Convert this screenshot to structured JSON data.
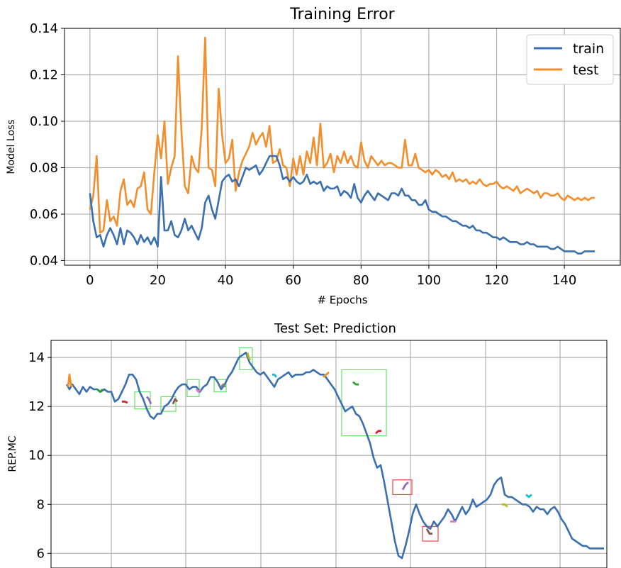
{
  "chart_data": [
    {
      "type": "line",
      "title": "Training Error",
      "xlabel": "# Epochs",
      "ylabel": "Model Loss",
      "xlim": [
        -7.5,
        156.5
      ],
      "ylim": [
        0.038,
        0.14
      ],
      "xticks": [
        0,
        20,
        40,
        60,
        80,
        100,
        120,
        140
      ],
      "yticks": [
        0.04,
        0.06,
        0.08,
        0.1,
        0.12,
        0.14
      ],
      "xtick_labels": [
        "0",
        "20",
        "40",
        "60",
        "80",
        "100",
        "120",
        "140"
      ],
      "ytick_labels": [
        "0.04",
        "0.06",
        "0.08",
        "0.10",
        "0.12",
        "0.14"
      ],
      "grid": true,
      "legend_position": "top-right",
      "x": [
        0,
        1,
        2,
        3,
        4,
        5,
        6,
        7,
        8,
        9,
        10,
        11,
        12,
        13,
        14,
        15,
        16,
        17,
        18,
        19,
        20,
        21,
        22,
        23,
        24,
        25,
        26,
        27,
        28,
        29,
        30,
        31,
        32,
        33,
        34,
        35,
        36,
        37,
        38,
        39,
        40,
        41,
        42,
        43,
        44,
        45,
        46,
        47,
        48,
        49,
        50,
        51,
        52,
        53,
        54,
        55,
        56,
        57,
        58,
        59,
        60,
        61,
        62,
        63,
        64,
        65,
        66,
        67,
        68,
        69,
        70,
        71,
        72,
        73,
        74,
        75,
        76,
        77,
        78,
        79,
        80,
        81,
        82,
        83,
        84,
        85,
        86,
        87,
        88,
        89,
        90,
        91,
        92,
        93,
        94,
        95,
        96,
        97,
        98,
        99,
        100,
        101,
        102,
        103,
        104,
        105,
        106,
        107,
        108,
        109,
        110,
        111,
        112,
        113,
        114,
        115,
        116,
        117,
        118,
        119,
        120,
        121,
        122,
        123,
        124,
        125,
        126,
        127,
        128,
        129,
        130,
        131,
        132,
        133,
        134,
        135,
        136,
        137,
        138,
        139,
        140,
        141,
        142,
        143,
        144,
        145,
        146,
        147,
        148,
        149
      ],
      "series": [
        {
          "name": "train",
          "color": "#3a6fb0",
          "values": [
            0.069,
            0.057,
            0.05,
            0.051,
            0.046,
            0.051,
            0.054,
            0.051,
            0.047,
            0.054,
            0.047,
            0.053,
            0.052,
            0.05,
            0.047,
            0.051,
            0.048,
            0.05,
            0.047,
            0.05,
            0.046,
            0.076,
            0.053,
            0.053,
            0.057,
            0.051,
            0.05,
            0.053,
            0.058,
            0.053,
            0.055,
            0.052,
            0.049,
            0.054,
            0.065,
            0.068,
            0.062,
            0.058,
            0.066,
            0.074,
            0.076,
            0.077,
            0.074,
            0.075,
            0.072,
            0.076,
            0.08,
            0.079,
            0.08,
            0.081,
            0.077,
            0.079,
            0.082,
            0.085,
            0.085,
            0.085,
            0.081,
            0.075,
            0.076,
            0.074,
            0.076,
            0.074,
            0.073,
            0.074,
            0.077,
            0.073,
            0.074,
            0.073,
            0.074,
            0.07,
            0.072,
            0.071,
            0.071,
            0.072,
            0.068,
            0.07,
            0.069,
            0.067,
            0.073,
            0.067,
            0.065,
            0.068,
            0.07,
            0.068,
            0.066,
            0.069,
            0.068,
            0.067,
            0.066,
            0.069,
            0.069,
            0.068,
            0.071,
            0.068,
            0.068,
            0.066,
            0.066,
            0.064,
            0.064,
            0.066,
            0.062,
            0.061,
            0.061,
            0.06,
            0.059,
            0.059,
            0.058,
            0.057,
            0.057,
            0.056,
            0.055,
            0.055,
            0.054,
            0.055,
            0.053,
            0.053,
            0.052,
            0.052,
            0.051,
            0.05,
            0.05,
            0.049,
            0.05,
            0.049,
            0.048,
            0.048,
            0.048,
            0.047,
            0.047,
            0.048,
            0.047,
            0.047,
            0.046,
            0.046,
            0.046,
            0.046,
            0.045,
            0.045,
            0.046,
            0.045,
            0.044,
            0.044,
            0.044,
            0.044,
            0.043,
            0.043,
            0.044,
            0.044,
            0.044,
            0.044
          ]
        },
        {
          "name": "test",
          "color": "#f28e2b",
          "values": [
            0.062,
            0.068,
            0.085,
            0.052,
            0.053,
            0.066,
            0.057,
            0.059,
            0.055,
            0.07,
            0.075,
            0.064,
            0.066,
            0.063,
            0.071,
            0.072,
            0.078,
            0.062,
            0.06,
            0.078,
            0.094,
            0.084,
            0.1,
            0.073,
            0.08,
            0.085,
            0.128,
            0.096,
            0.072,
            0.069,
            0.085,
            0.08,
            0.078,
            0.097,
            0.136,
            0.08,
            0.079,
            0.072,
            0.114,
            0.094,
            0.082,
            0.084,
            0.092,
            0.07,
            0.078,
            0.083,
            0.086,
            0.089,
            0.095,
            0.09,
            0.093,
            0.095,
            0.089,
            0.098,
            0.082,
            0.083,
            0.088,
            0.081,
            0.08,
            0.072,
            0.084,
            0.077,
            0.085,
            0.077,
            0.087,
            0.082,
            0.093,
            0.081,
            0.099,
            0.08,
            0.082,
            0.086,
            0.078,
            0.085,
            0.082,
            0.087,
            0.082,
            0.085,
            0.081,
            0.08,
            0.091,
            0.083,
            0.08,
            0.085,
            0.083,
            0.081,
            0.083,
            0.081,
            0.082,
            0.082,
            0.081,
            0.08,
            0.08,
            0.092,
            0.081,
            0.081,
            0.086,
            0.08,
            0.079,
            0.078,
            0.079,
            0.077,
            0.079,
            0.078,
            0.076,
            0.077,
            0.075,
            0.078,
            0.074,
            0.075,
            0.074,
            0.075,
            0.073,
            0.074,
            0.073,
            0.075,
            0.073,
            0.072,
            0.073,
            0.073,
            0.074,
            0.072,
            0.071,
            0.072,
            0.071,
            0.07,
            0.072,
            0.069,
            0.07,
            0.071,
            0.07,
            0.069,
            0.07,
            0.067,
            0.069,
            0.069,
            0.068,
            0.068,
            0.069,
            0.067,
            0.066,
            0.068,
            0.067,
            0.066,
            0.067,
            0.066,
            0.067,
            0.066,
            0.067,
            0.067
          ]
        }
      ]
    },
    {
      "type": "line",
      "title": "Test Set: Prediction",
      "xlabel": "",
      "ylabel": "REP.MC",
      "xlim": [
        0,
        784
      ],
      "ylim": [
        5.4,
        14.7
      ],
      "yticks": [
        6,
        8,
        10,
        12,
        14
      ],
      "ytick_labels": [
        "6",
        "8",
        "10",
        "12",
        "14"
      ],
      "grid": true,
      "actual": {
        "color": "#3a6fb0",
        "x": [
          22,
          26,
          30,
          35,
          40,
          45,
          50,
          55,
          60,
          65,
          70,
          75,
          80,
          85,
          90,
          95,
          100,
          105,
          110,
          115,
          120,
          125,
          130,
          135,
          140,
          145,
          150,
          155,
          160,
          165,
          170,
          175,
          180,
          185,
          190,
          195,
          200,
          205,
          210,
          215,
          220,
          225,
          230,
          235,
          240,
          245,
          250,
          255,
          260,
          265,
          270,
          275,
          280,
          285,
          290,
          295,
          300,
          305,
          310,
          315,
          320,
          325,
          330,
          335,
          340,
          345,
          350,
          355,
          360,
          365,
          370,
          375,
          380,
          385,
          390,
          395,
          400,
          405,
          410,
          415,
          420,
          425,
          430,
          435,
          440,
          445,
          450,
          455,
          460,
          465,
          470,
          475,
          480,
          485,
          490,
          495,
          500,
          505,
          510,
          515,
          520,
          525,
          530,
          535,
          540,
          545,
          550,
          555,
          560,
          565,
          570,
          575,
          580,
          585,
          590,
          595,
          600,
          605,
          610,
          615,
          620,
          625,
          630,
          635,
          640,
          645,
          650,
          655,
          660,
          665,
          670,
          675,
          680,
          685,
          690,
          695,
          700,
          705,
          710,
          715,
          720,
          725,
          730,
          735,
          740,
          745,
          750,
          755,
          760,
          765,
          770,
          775,
          780
        ],
        "y": [
          12.9,
          12.7,
          12.9,
          12.7,
          12.5,
          12.8,
          12.6,
          12.8,
          12.7,
          12.7,
          12.6,
          12.7,
          12.6,
          12.6,
          12.2,
          12.3,
          12.6,
          12.9,
          13.3,
          13.3,
          13.1,
          12.6,
          12.3,
          11.9,
          11.6,
          11.5,
          11.7,
          11.7,
          12.0,
          12.1,
          12.3,
          12.6,
          12.8,
          12.9,
          12.9,
          12.7,
          12.8,
          12.8,
          12.6,
          12.8,
          12.9,
          13.2,
          13.2,
          13.0,
          12.7,
          12.9,
          13.2,
          13.4,
          13.7,
          14.0,
          14.1,
          14.2,
          13.8,
          13.6,
          13.4,
          13.3,
          13.4,
          13.2,
          13.0,
          12.8,
          13.1,
          13.2,
          13.3,
          13.4,
          13.2,
          13.3,
          13.3,
          13.3,
          13.4,
          13.4,
          13.5,
          13.4,
          13.3,
          13.3,
          13.1,
          12.9,
          12.7,
          12.4,
          12.1,
          11.8,
          11.9,
          12.0,
          11.7,
          11.6,
          11.3,
          10.9,
          10.5,
          9.9,
          9.5,
          9.6,
          8.9,
          8.1,
          7.3,
          6.5,
          5.9,
          5.8,
          6.3,
          6.9,
          7.6,
          8.0,
          7.6,
          7.3,
          7.1,
          7.0,
          7.3,
          7.1,
          7.3,
          7.5,
          7.8,
          7.6,
          7.3,
          7.6,
          7.9,
          7.6,
          7.8,
          8.2,
          7.9,
          8.0,
          8.1,
          8.2,
          8.4,
          8.8,
          9.0,
          9.1,
          8.4,
          8.3,
          8.3,
          8.2,
          8.1,
          8.0,
          8.0,
          7.9,
          7.7,
          7.9,
          7.8,
          7.8,
          7.6,
          7.8,
          7.9,
          7.7,
          7.4,
          7.2,
          6.9,
          6.6,
          6.5,
          6.4,
          6.3,
          6.3,
          6.2,
          6.2,
          6.2,
          6.2,
          6.2
        ]
      },
      "predictions": [
        {
          "color": "#f28e2b",
          "x": [
            24,
            26,
            28,
            30
          ],
          "y": [
            12.8,
            13.3,
            12.9,
            12.8
          ]
        },
        {
          "color": "#2ca02c",
          "x": [
            65,
            69,
            73
          ],
          "y": [
            12.7,
            12.6,
            12.7
          ]
        },
        {
          "color": "#d62728",
          "x": [
            100,
            104,
            108
          ],
          "y": [
            12.2,
            12.2,
            12.15
          ]
        },
        {
          "color": "#9467bd",
          "x": [
            135,
            138,
            141
          ],
          "y": [
            12.4,
            12.3,
            12.1
          ]
        },
        {
          "color": "#8c564b",
          "x": [
            172,
            175,
            178
          ],
          "y": [
            12.1,
            12.3,
            12.2
          ]
        },
        {
          "color": "#e377c2",
          "x": [
            205,
            208,
            211
          ],
          "y": [
            12.7,
            12.6,
            12.7
          ]
        },
        {
          "color": "#7f7f7f",
          "x": [
            240,
            243,
            246
          ],
          "y": [
            12.8,
            12.9,
            12.8
          ]
        },
        {
          "color": "#bcbd22",
          "x": [
            277,
            279,
            281
          ],
          "y": [
            14.2,
            14.0,
            13.9
          ]
        },
        {
          "color": "#17becf",
          "x": [
            312,
            315,
            318
          ],
          "y": [
            13.3,
            13.3,
            13.2
          ]
        },
        {
          "color": "#f28e2b",
          "x": [
            384,
            388,
            392
          ],
          "y": [
            13.2,
            13.3,
            13.4
          ]
        },
        {
          "color": "#2ca02c",
          "x": [
            426,
            430,
            434
          ],
          "y": [
            13.0,
            12.9,
            12.9
          ]
        },
        {
          "color": "#d62728",
          "x": [
            458,
            462,
            466
          ],
          "y": [
            10.9,
            11.0,
            11.0
          ]
        },
        {
          "color": "#9467bd",
          "x": [
            496,
            500,
            504
          ],
          "y": [
            8.6,
            8.8,
            8.9
          ]
        },
        {
          "color": "#8c564b",
          "x": [
            530,
            534,
            538
          ],
          "y": [
            7.0,
            6.8,
            6.8
          ]
        },
        {
          "color": "#e377c2",
          "x": [
            563,
            567,
            571
          ],
          "y": [
            7.3,
            7.3,
            7.3
          ]
        },
        {
          "color": "#bcbd22",
          "x": [
            636,
            640,
            644
          ],
          "y": [
            8.0,
            8.0,
            7.9
          ]
        },
        {
          "color": "#17becf",
          "x": [
            670,
            674,
            678
          ],
          "y": [
            8.4,
            8.3,
            8.4
          ]
        }
      ],
      "highlight_boxes": [
        {
          "color": "#66e066",
          "x0": 118,
          "x1": 140,
          "y0": 11.9,
          "y1": 12.6
        },
        {
          "color": "#66e066",
          "x0": 155,
          "x1": 176,
          "y0": 11.8,
          "y1": 12.4
        },
        {
          "color": "#66e066",
          "x0": 192,
          "x1": 209,
          "y0": 12.4,
          "y1": 13.1
        },
        {
          "color": "#66e066",
          "x0": 230,
          "x1": 247,
          "y0": 12.6,
          "y1": 13.1
        },
        {
          "color": "#66e066",
          "x0": 266,
          "x1": 284,
          "y0": 13.5,
          "y1": 14.4
        },
        {
          "color": "#66e066",
          "x0": 410,
          "x1": 473,
          "y0": 10.8,
          "y1": 13.5
        },
        {
          "color": "#ee4444",
          "x0": 482,
          "x1": 509,
          "y0": 8.4,
          "y1": 9.0
        },
        {
          "color": "#ee4444",
          "x0": 524,
          "x1": 546,
          "y0": 6.5,
          "y1": 7.1
        }
      ]
    }
  ]
}
